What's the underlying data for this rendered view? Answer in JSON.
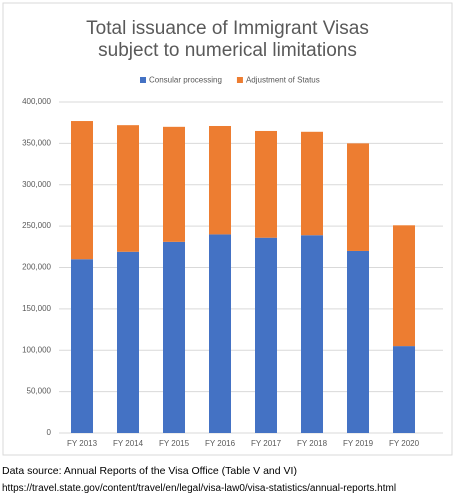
{
  "chart_data": {
    "type": "stacked_bar",
    "title": "Total issuance of Immigrant Visas\nsubject to numerical limitations",
    "categories": [
      "FY 2013",
      "FY 2014",
      "FY 2015",
      "FY 2016",
      "FY 2017",
      "FY 2018",
      "FY 2019",
      "FY 2020"
    ],
    "series": [
      {
        "name": "Consular processing",
        "color": "#4472c4",
        "values": [
          210000,
          219000,
          231000,
          240000,
          236000,
          239000,
          220000,
          105000
        ]
      },
      {
        "name": "Adjustment of Status",
        "color": "#ed7d31",
        "values": [
          167000,
          153000,
          139000,
          131000,
          129000,
          125000,
          130000,
          146000
        ]
      }
    ],
    "ylim": [
      0,
      400000
    ],
    "yticks": [
      0,
      {
        "value": 50000,
        "label": "50,000"
      },
      {
        "value": 100000,
        "label": "100,000"
      },
      {
        "value": 150000,
        "label": "150,000"
      },
      {
        "value": 200000,
        "label": "200,000"
      },
      {
        "value": 250000,
        "label": "250,000"
      },
      {
        "value": 300000,
        "label": "300,000"
      },
      {
        "value": 350000,
        "label": "350,000"
      },
      {
        "value": 400000,
        "label": "400,000"
      }
    ],
    "grid": true,
    "legend": "top"
  },
  "footer": {
    "line1": "Data source: Annual Reports of the Visa Office (Table V and VI)",
    "line2": "https://travel.state.gov/content/travel/en/legal/visa-law0/visa-statistics/annual-reports.html"
  }
}
